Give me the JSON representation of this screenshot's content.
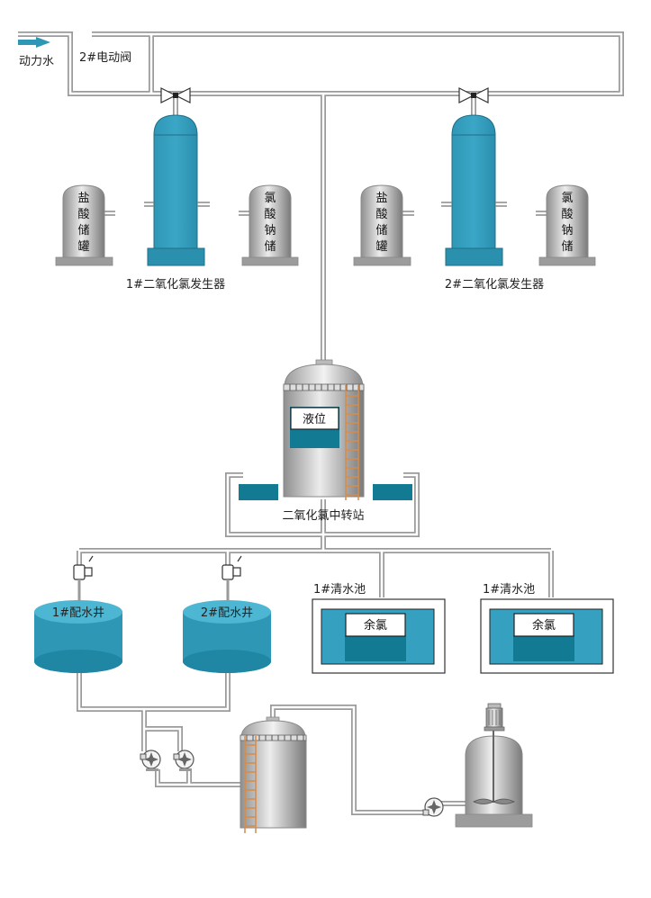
{
  "colors": {
    "teal": "#35a0bf",
    "teal_dark": "#137a94",
    "pipe": "#9a9a9a",
    "steel_light": "#e6e6e6",
    "steel_dark": "#8a8a8a",
    "ladder": "#d98b46"
  },
  "labels": {
    "power_water": "动力水",
    "valve2": "2#电动阀",
    "gen1": "1#二氧化氯发生器",
    "gen2": "2#二氧化氯发生器",
    "transfer_station": "二氧化氯中转站",
    "level": "液位",
    "well1": "1#配水井",
    "well2": "2#配水井",
    "pool1": "1#清水池",
    "pool2": "1#清水池",
    "residual1": "余氯",
    "residual2": "余氯"
  },
  "tanks": {
    "hcl1": [
      "盐",
      "酸",
      "储",
      "罐"
    ],
    "naclo1": [
      "氯",
      "酸",
      "钠",
      "储"
    ],
    "hcl2": [
      "盐",
      "酸",
      "储",
      "罐"
    ],
    "naclo2": [
      "氯",
      "酸",
      "钠",
      "储"
    ]
  },
  "icons": {
    "arrow": "flow-arrow-icon",
    "valve": "butterfly-valve-icon",
    "pump": "centrifugal-pump-icon",
    "dosing": "dosing-valve-icon",
    "mixer": "mixer-motor-icon"
  }
}
